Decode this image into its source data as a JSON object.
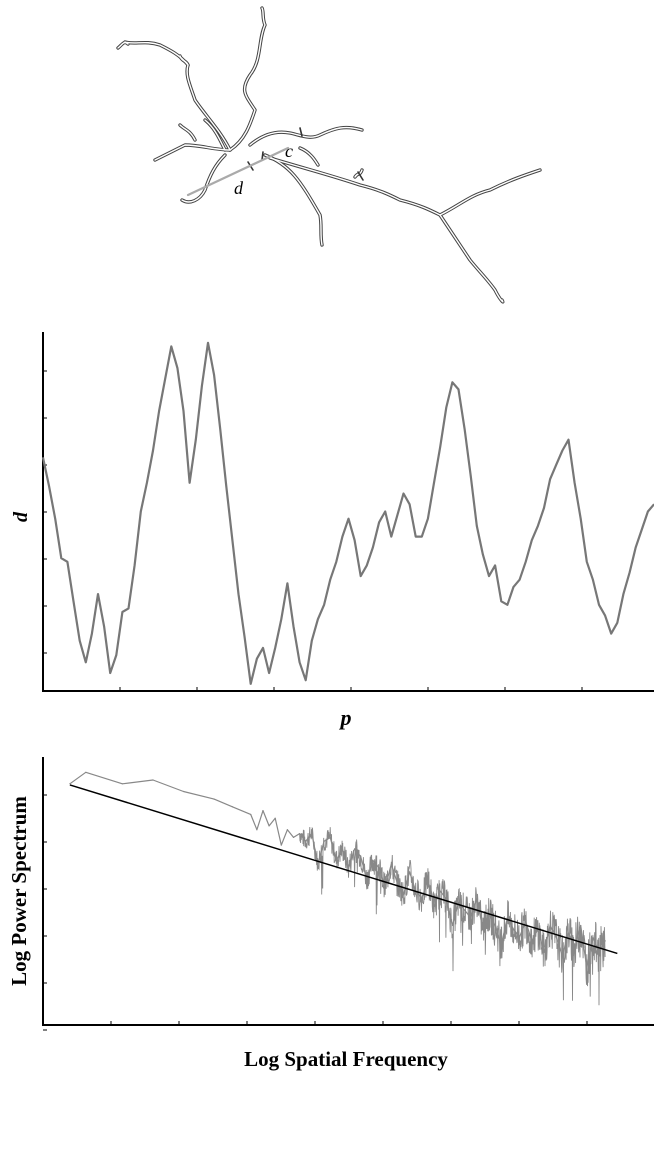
{
  "neuron_figure": {
    "label_c": "c",
    "label_d": "d",
    "trace_color": "#444444",
    "measure_line_color": "#aaaaaa"
  },
  "chart_data": [
    {
      "type": "line",
      "title": "",
      "xlabel": "p",
      "ylabel": "d",
      "xlim": [
        0,
        100
      ],
      "ylim": [
        0,
        100
      ],
      "xticks": 8,
      "yticks": 7,
      "grid": false,
      "series": [
        {
          "color": "#777777",
          "x": [
            0,
            1,
            2,
            3,
            4,
            5,
            6,
            7,
            8,
            9,
            10,
            11,
            12,
            13,
            14,
            15,
            16,
            17,
            18,
            19,
            20,
            21,
            22,
            23,
            24,
            25,
            26,
            27,
            28,
            29,
            30,
            31,
            32,
            33,
            34,
            35,
            36,
            37,
            38,
            39,
            40,
            41,
            42,
            43,
            44,
            45,
            46,
            47,
            48,
            49,
            50,
            51,
            52,
            53,
            54,
            55,
            56,
            57,
            58,
            59,
            60,
            61,
            62,
            63,
            64,
            65,
            66,
            67,
            68,
            69,
            70,
            71,
            72,
            73,
            74,
            75,
            76,
            77,
            78,
            79,
            80,
            81,
            82,
            83,
            84,
            85,
            86,
            87,
            88,
            89,
            90,
            91,
            92,
            93,
            94,
            95,
            96,
            97,
            98,
            99,
            100
          ],
          "values": [
            65,
            57,
            48,
            37,
            36,
            25,
            14,
            8,
            16,
            27,
            18,
            5,
            10,
            22,
            23,
            35,
            50,
            58,
            67,
            78,
            87,
            96,
            90,
            78,
            58,
            70,
            85,
            97,
            88,
            73,
            57,
            42,
            27,
            15,
            2,
            9,
            12,
            5,
            12,
            20,
            30,
            18,
            8,
            3,
            14,
            20,
            24,
            31,
            36,
            43,
            48,
            42,
            32,
            35,
            40,
            47,
            50,
            43,
            49,
            55,
            52,
            43,
            43,
            48,
            58,
            68,
            79,
            86,
            84,
            73,
            60,
            46,
            38,
            32,
            35,
            25,
            24,
            29,
            31,
            36,
            42,
            46,
            51,
            59,
            63,
            67,
            70,
            58,
            48,
            36,
            31,
            24,
            21,
            16,
            19,
            27,
            33,
            40,
            45,
            50,
            52
          ]
        }
      ]
    },
    {
      "type": "line",
      "title": "",
      "xlabel": "Log Spatial Frequency",
      "ylabel": "Log Power Spectrum",
      "xlim": [
        0,
        10
      ],
      "ylim": [
        0,
        7
      ],
      "xticks": 8,
      "yticks": 6,
      "grid": false,
      "series": [
        {
          "color": "#888888",
          "x": [
            0.44,
            0.7,
            1.3,
            1.8,
            2.3,
            2.8,
            3.1,
            3.4,
            3.5,
            3.6,
            3.7,
            3.8,
            3.9,
            4.0,
            4.1,
            4.2,
            4.3,
            4.4,
            4.5,
            4.6,
            4.7,
            4.8,
            4.9,
            5.0,
            5.1,
            5.2,
            5.3,
            5.4,
            5.5,
            5.6,
            5.7,
            5.8,
            5.9,
            6.0,
            6.1,
            6.2,
            6.3,
            6.4,
            6.5,
            6.6,
            6.7,
            6.8,
            6.9,
            7.0,
            7.1,
            7.2,
            7.3,
            7.4,
            7.5,
            7.6,
            7.7,
            7.8,
            7.9,
            8.0,
            8.1,
            8.2,
            8.3,
            8.4,
            8.5,
            8.6,
            8.7,
            8.8,
            8.9,
            9.0,
            9.1,
            9.2
          ],
          "values": [
            6.3,
            6.6,
            6.3,
            6.4,
            6.1,
            5.9,
            5.7,
            5.5,
            5.1,
            5.6,
            5.2,
            5.4,
            4.7,
            5.1,
            4.9,
            5.0,
            4.8,
            5.0,
            4.2,
            4.8,
            4.9,
            4.3,
            4.6,
            4.1,
            4.6,
            4.4,
            3.8,
            4.3,
            4.1,
            3.6,
            4.2,
            3.7,
            3.4,
            4.0,
            3.5,
            3.3,
            3.8,
            3.1,
            3.5,
            3.3,
            2.6,
            3.2,
            3.0,
            2.8,
            3.3,
            2.5,
            2.9,
            2.6,
            2.1,
            2.8,
            2.5,
            2.3,
            2.7,
            2.2,
            2.5,
            1.9,
            2.6,
            2.3,
            1.8,
            2.4,
            2.0,
            2.6,
            1.5,
            2.3,
            1.9,
            2.2
          ]
        },
        {
          "color": "#000000",
          "x": [
            0.44,
            9.4
          ],
          "values": [
            6.27,
            1.87
          ]
        }
      ]
    }
  ]
}
